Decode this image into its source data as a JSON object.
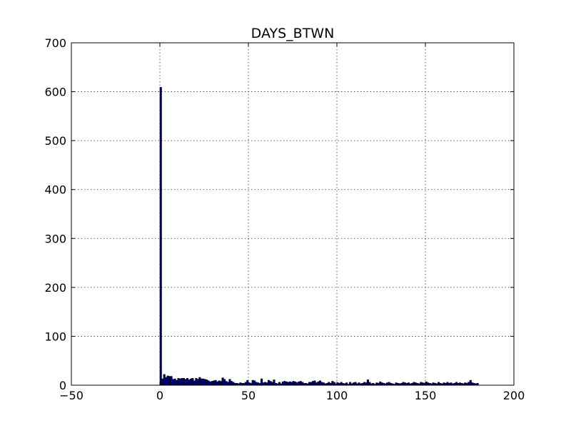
{
  "chart_data": {
    "type": "bar",
    "title": "DAYS_BTWN",
    "xlabel": "",
    "ylabel": "",
    "xlim": [
      -50,
      200
    ],
    "ylim": [
      0,
      700
    ],
    "x_ticks": [
      -50,
      0,
      50,
      100,
      150,
      200
    ],
    "x_tick_labels": [
      "−50",
      "0",
      "50",
      "100",
      "150",
      "200"
    ],
    "y_ticks": [
      0,
      100,
      200,
      300,
      400,
      500,
      600,
      700
    ],
    "y_tick_labels": [
      "0",
      "100",
      "200",
      "300",
      "400",
      "500",
      "600",
      "700"
    ],
    "grid": true,
    "bar_color": "#00007f",
    "bin_width": 1,
    "x": [
      0,
      1,
      2,
      3,
      4,
      5,
      6,
      7,
      8,
      9,
      10,
      11,
      12,
      13,
      14,
      15,
      16,
      17,
      18,
      19,
      20,
      21,
      22,
      23,
      24,
      25,
      26,
      27,
      28,
      29,
      30,
      31,
      32,
      33,
      34,
      35,
      36,
      37,
      38,
      39,
      40,
      41,
      42,
      43,
      44,
      45,
      46,
      47,
      48,
      49,
      50,
      51,
      52,
      53,
      54,
      55,
      56,
      57,
      58,
      59,
      60,
      61,
      62,
      63,
      64,
      65,
      66,
      67,
      68,
      69,
      70,
      71,
      72,
      73,
      74,
      75,
      76,
      77,
      78,
      79,
      80,
      81,
      82,
      83,
      84,
      85,
      86,
      87,
      88,
      89,
      90,
      91,
      92,
      93,
      94,
      95,
      96,
      97,
      98,
      99,
      100,
      101,
      102,
      103,
      104,
      105,
      106,
      107,
      108,
      109,
      110,
      111,
      112,
      113,
      114,
      115,
      116,
      117,
      118,
      119,
      120,
      121,
      122,
      123,
      124,
      125,
      126,
      127,
      128,
      129,
      130,
      131,
      132,
      133,
      134,
      135,
      136,
      137,
      138,
      139,
      140,
      141,
      142,
      143,
      144,
      145,
      146,
      147,
      148,
      149,
      150,
      151,
      152,
      153,
      154,
      155,
      156,
      157,
      158,
      159,
      160,
      161,
      162,
      163,
      164,
      165,
      166,
      167,
      168,
      169,
      170,
      171,
      172,
      173,
      174,
      175,
      176,
      177,
      178,
      179
    ],
    "values": [
      609,
      13,
      22,
      16,
      19,
      18,
      18,
      12,
      13,
      10,
      14,
      13,
      14,
      14,
      12,
      14,
      11,
      13,
      14,
      9,
      14,
      12,
      16,
      13,
      13,
      12,
      11,
      9,
      7,
      8,
      9,
      10,
      7,
      9,
      8,
      15,
      12,
      8,
      6,
      12,
      8,
      6,
      4,
      4,
      3,
      5,
      4,
      4,
      6,
      10,
      5,
      4,
      10,
      9,
      6,
      5,
      4,
      13,
      5,
      6,
      5,
      10,
      8,
      6,
      11,
      4,
      3,
      6,
      3,
      7,
      8,
      7,
      6,
      7,
      6,
      8,
      7,
      5,
      7,
      8,
      6,
      4,
      4,
      3,
      6,
      6,
      8,
      9,
      5,
      7,
      9,
      6,
      5,
      3,
      4,
      6,
      4,
      8,
      6,
      3,
      5,
      4,
      6,
      4,
      3,
      5,
      2,
      6,
      3,
      5,
      6,
      3,
      5,
      3,
      4,
      6,
      5,
      11,
      6,
      3,
      4,
      2,
      5,
      4,
      7,
      5,
      4,
      3,
      5,
      6,
      4,
      3,
      2,
      5,
      4,
      3,
      4,
      6,
      5,
      4,
      5,
      3,
      4,
      6,
      5,
      4,
      3,
      6,
      5,
      4,
      7,
      5,
      4,
      3,
      5,
      4,
      3,
      6,
      4,
      3,
      5,
      4,
      6,
      4,
      5,
      3,
      4,
      6,
      4,
      5,
      4,
      3,
      5,
      4,
      6,
      10,
      5,
      4,
      3,
      4
    ]
  }
}
